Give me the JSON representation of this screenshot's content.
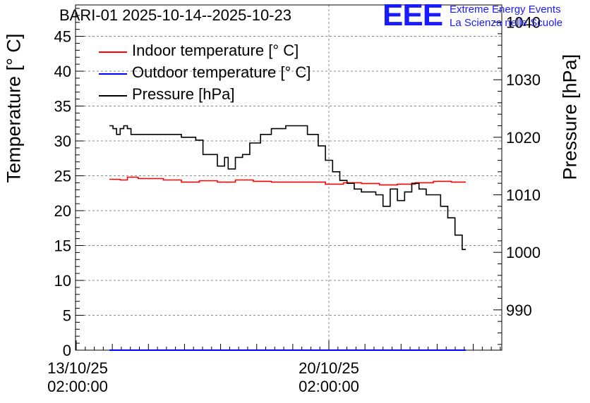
{
  "chart_data": {
    "type": "line",
    "title": "BARI-01 2025-10-14--2025-10-23",
    "ylabel": "Temperature [° C]",
    "y2label": "Pressure [hPa]",
    "ylim": [
      0,
      49.5
    ],
    "y2lim": [
      983,
      1043
    ],
    "yticks": [
      "0",
      "5",
      "10",
      "15",
      "20",
      "25",
      "30",
      "35",
      "40",
      "45"
    ],
    "y2ticks": [
      "990",
      "1000",
      "1010",
      "1020",
      "1030",
      "1040"
    ],
    "xticks": [
      {
        "date": "13/10/25",
        "time": "02:00:00"
      },
      {
        "date": "20/10/25",
        "time": "02:00:00"
      }
    ],
    "grid": true,
    "legend_position": "top-left",
    "series": [
      {
        "name": "Indoor temperature [° C]",
        "color": "#ff0000",
        "axis": "left",
        "x": [
          0.0,
          0.3,
          0.5,
          0.8,
          1.0,
          1.5,
          2.0,
          2.5,
          3.0,
          3.5,
          4.0,
          4.5,
          5.0,
          5.5,
          6.0,
          6.5,
          7.0,
          7.5,
          8.0,
          8.5,
          9.0,
          9.5,
          9.9
        ],
        "values": [
          24.5,
          24.4,
          24.8,
          24.6,
          24.6,
          24.4,
          24.1,
          24.3,
          24.1,
          24.4,
          24.2,
          24.1,
          24.1,
          24.1,
          23.8,
          24.0,
          23.9,
          23.7,
          23.8,
          24.0,
          24.2,
          24.1,
          24.1
        ]
      },
      {
        "name": "Outdoor temperature [° C]",
        "color": "#0000ff",
        "axis": "left",
        "x": [
          0.0,
          9.9
        ],
        "values": [
          0.0,
          0.0
        ]
      },
      {
        "name": "Pressure [hPa]",
        "color": "#000000",
        "axis": "right",
        "x": [
          0.0,
          0.1,
          0.2,
          0.3,
          0.4,
          0.5,
          0.6,
          0.7,
          1.0,
          1.5,
          2.0,
          2.4,
          2.6,
          2.8,
          3.0,
          3.2,
          3.3,
          3.5,
          3.7,
          3.9,
          4.2,
          4.5,
          4.9,
          5.2,
          5.5,
          5.8,
          6.0,
          6.2,
          6.4,
          6.6,
          6.8,
          7.0,
          7.2,
          7.4,
          7.6,
          7.8,
          8.0,
          8.2,
          8.4,
          8.6,
          8.8,
          9.0,
          9.2,
          9.4,
          9.6,
          9.8,
          9.9
        ],
        "values": [
          1022,
          1021.5,
          1020.5,
          1021.5,
          1022,
          1021.5,
          1020.5,
          1020.5,
          1020.5,
          1020.5,
          1020.0,
          1019.5,
          1017,
          1017,
          1015,
          1016.5,
          1014.5,
          1016.5,
          1017.0,
          1019,
          1020.5,
          1021.5,
          1022,
          1022,
          1020.5,
          1018.5,
          1016.0,
          1014.0,
          1012.5,
          1012.0,
          1011.0,
          1010.5,
          1010.5,
          1010.0,
          1008.0,
          1011.0,
          1009.0,
          1010.5,
          1012.0,
          1011.0,
          1010.0,
          1010.0,
          1008.0,
          1006.0,
          1003.0,
          1000.5,
          1000.5
        ]
      }
    ]
  }
}
